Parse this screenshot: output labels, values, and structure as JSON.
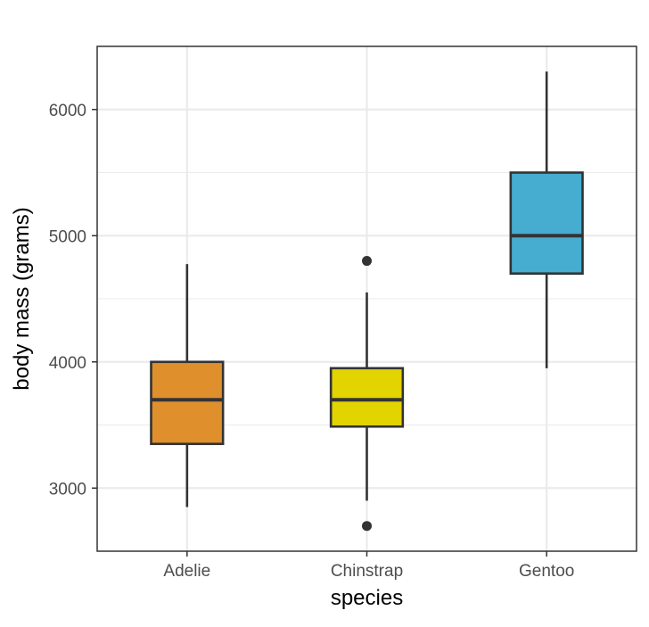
{
  "chart_data": {
    "type": "boxplot",
    "title": "",
    "xlabel": "species",
    "ylabel": "body mass (grams)",
    "categories": [
      "Adelie",
      "Chinstrap",
      "Gentoo"
    ],
    "ylim": [
      2500,
      6500
    ],
    "y_ticks": [
      3000,
      4000,
      5000,
      6000
    ],
    "y_tick_labels": [
      "3000",
      "4000",
      "5000",
      "6000"
    ],
    "grid": true,
    "legend": "none",
    "boxes": [
      {
        "category": "Adelie",
        "color": "#df8f2c",
        "whisker_low": 2850,
        "q1": 3350,
        "median": 3700,
        "q3": 4000,
        "whisker_high": 4775,
        "outliers": []
      },
      {
        "category": "Chinstrap",
        "color": "#e1d400",
        "whisker_low": 2900,
        "q1": 3487.5,
        "median": 3700,
        "q3": 3950,
        "whisker_high": 4550,
        "outliers": [
          4800,
          2700
        ]
      },
      {
        "category": "Gentoo",
        "color": "#46acd0",
        "whisker_low": 3950,
        "q1": 4700,
        "median": 5000,
        "q3": 5500,
        "whisker_high": 6300,
        "outliers": []
      }
    ]
  }
}
